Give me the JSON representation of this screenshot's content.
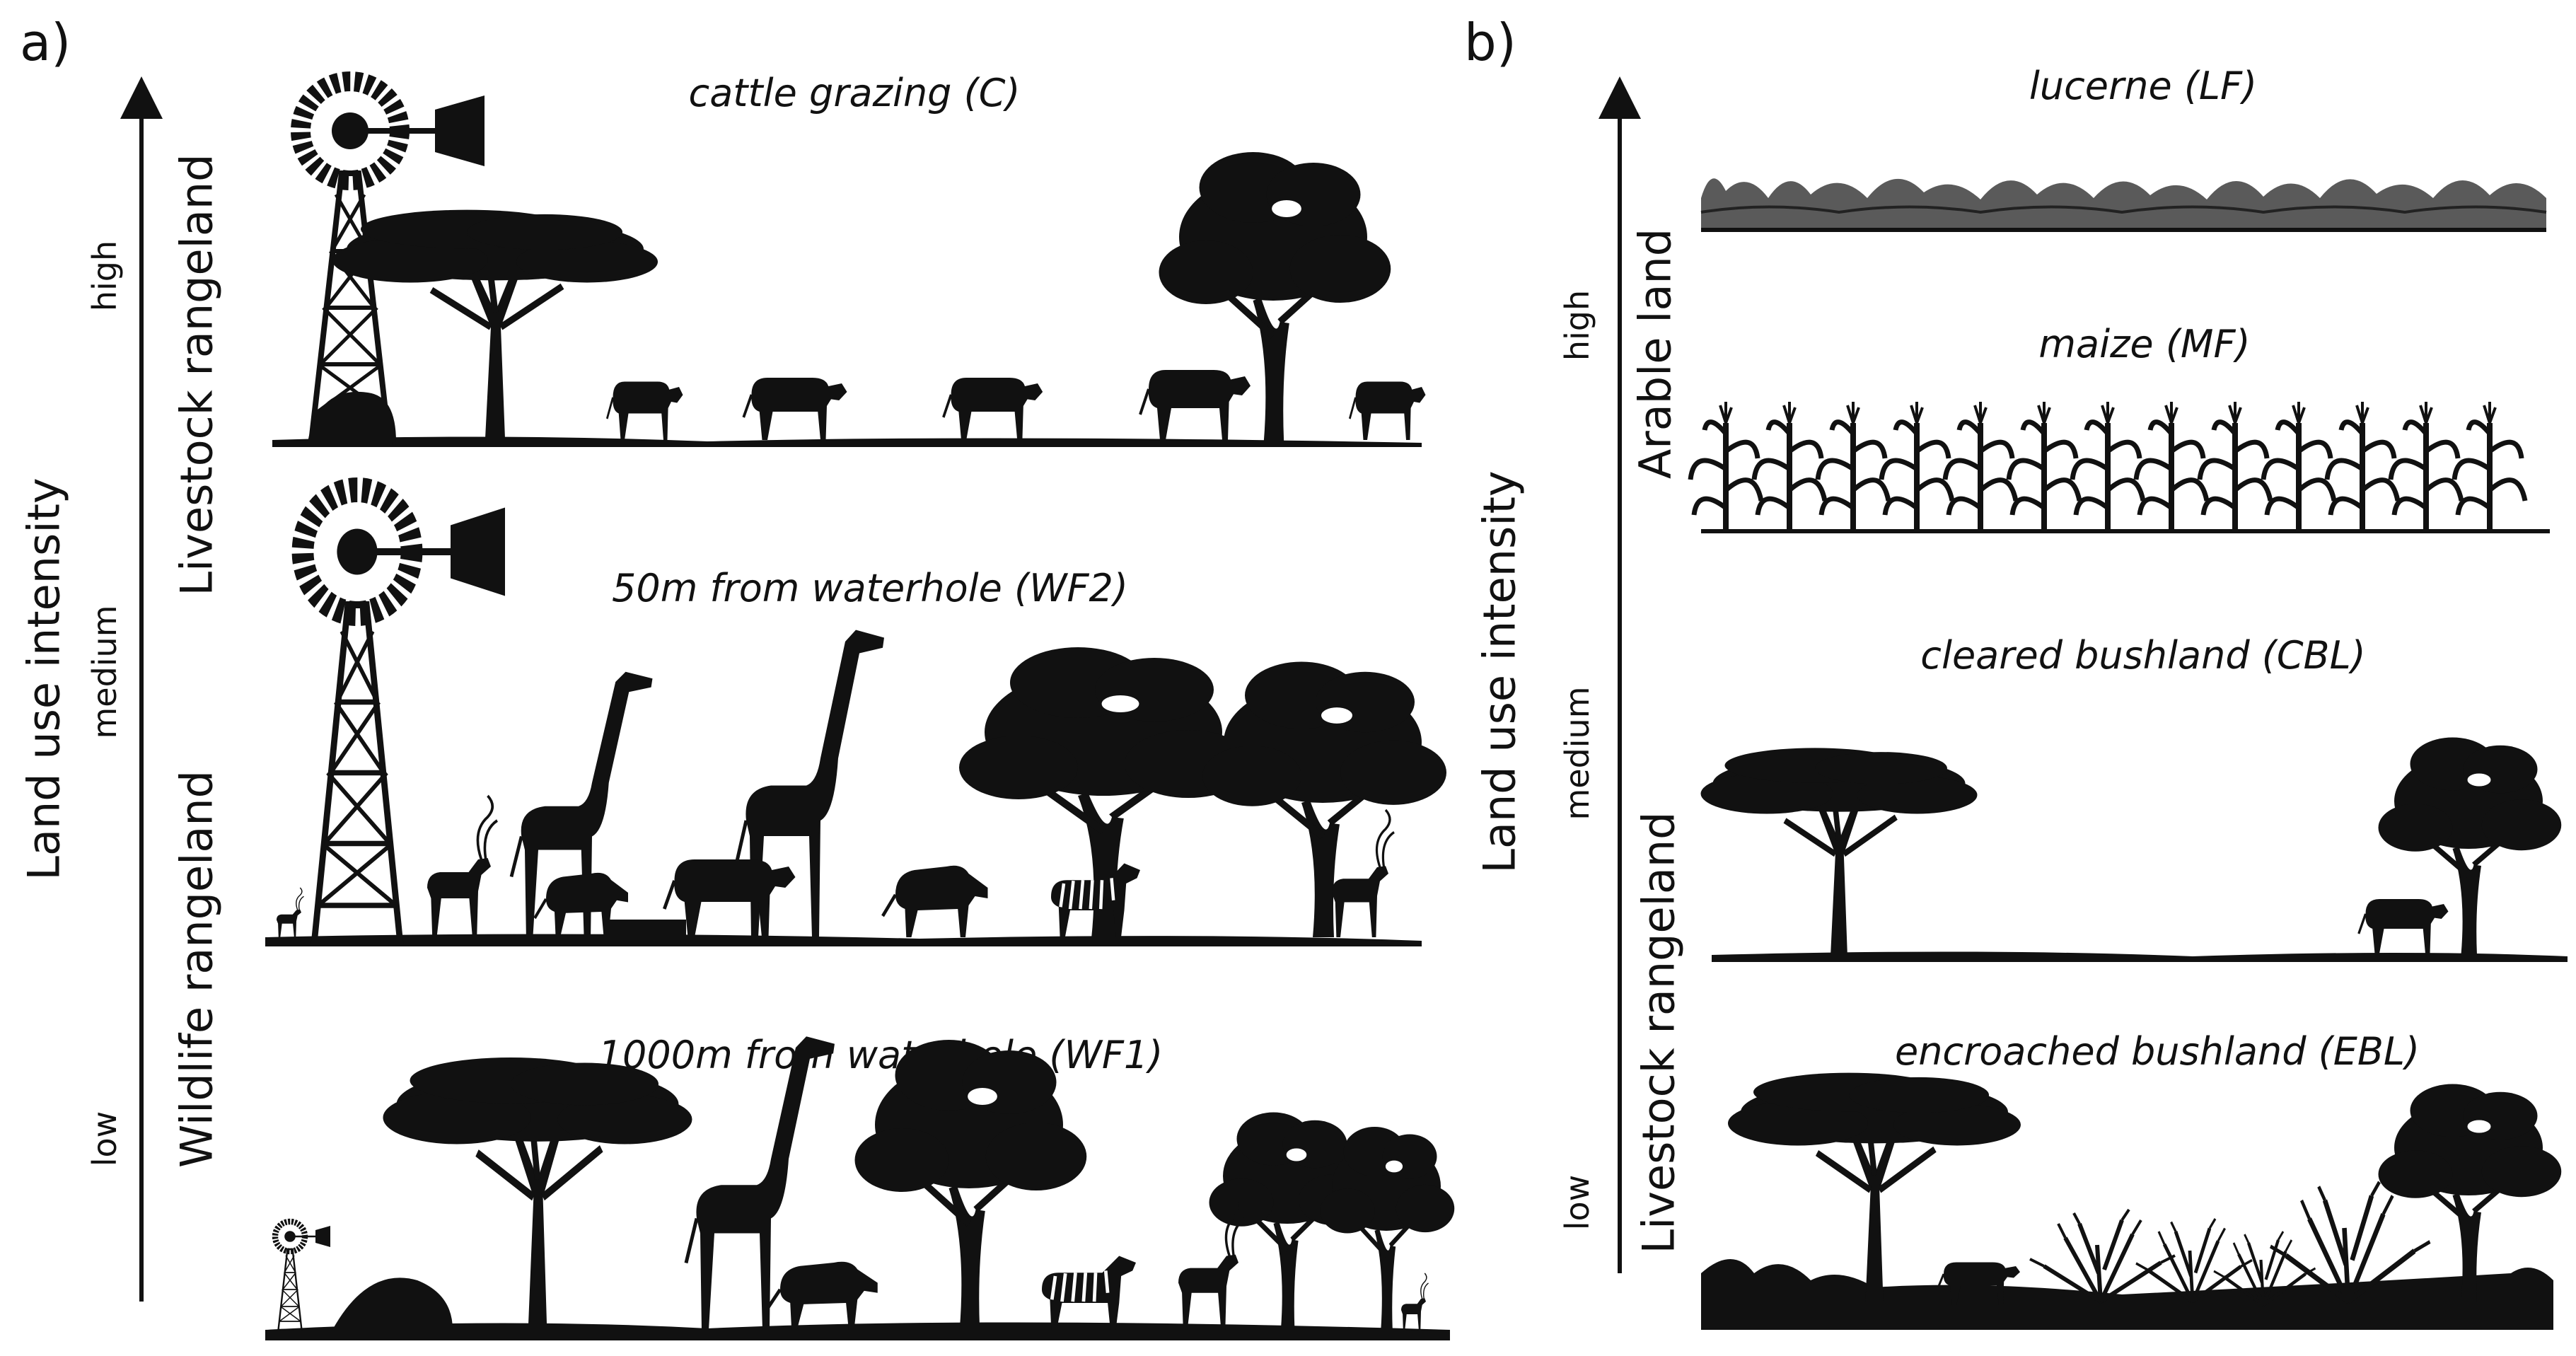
{
  "panel_a": {
    "letter": "a)",
    "axis_title": "Land use intensity",
    "levels": {
      "high": "high",
      "medium": "medium",
      "low": "low"
    },
    "zones": {
      "top": "Livestock rangeland",
      "bottom": "Wildlife rangeland"
    },
    "scenes": {
      "cattle": "cattle grazing (C)",
      "wf2": "50m from waterhole (WF2)",
      "wf1": "1000m from waterhole (WF1)"
    }
  },
  "panel_b": {
    "letter": "b)",
    "axis_title": "Land use intensity",
    "levels": {
      "high": "high",
      "medium": "medium",
      "low": "low"
    },
    "zones": {
      "top": "Arable land",
      "bottom": "Livestock rangeland"
    },
    "scenes": {
      "lucerne": "lucerne (LF)",
      "maize": "maize (MF)",
      "cbl": "cleared bushland (CBL)",
      "ebl": "encroached bushland (EBL)"
    }
  },
  "colors": {
    "ink": "#111111",
    "background": "#ffffff"
  }
}
